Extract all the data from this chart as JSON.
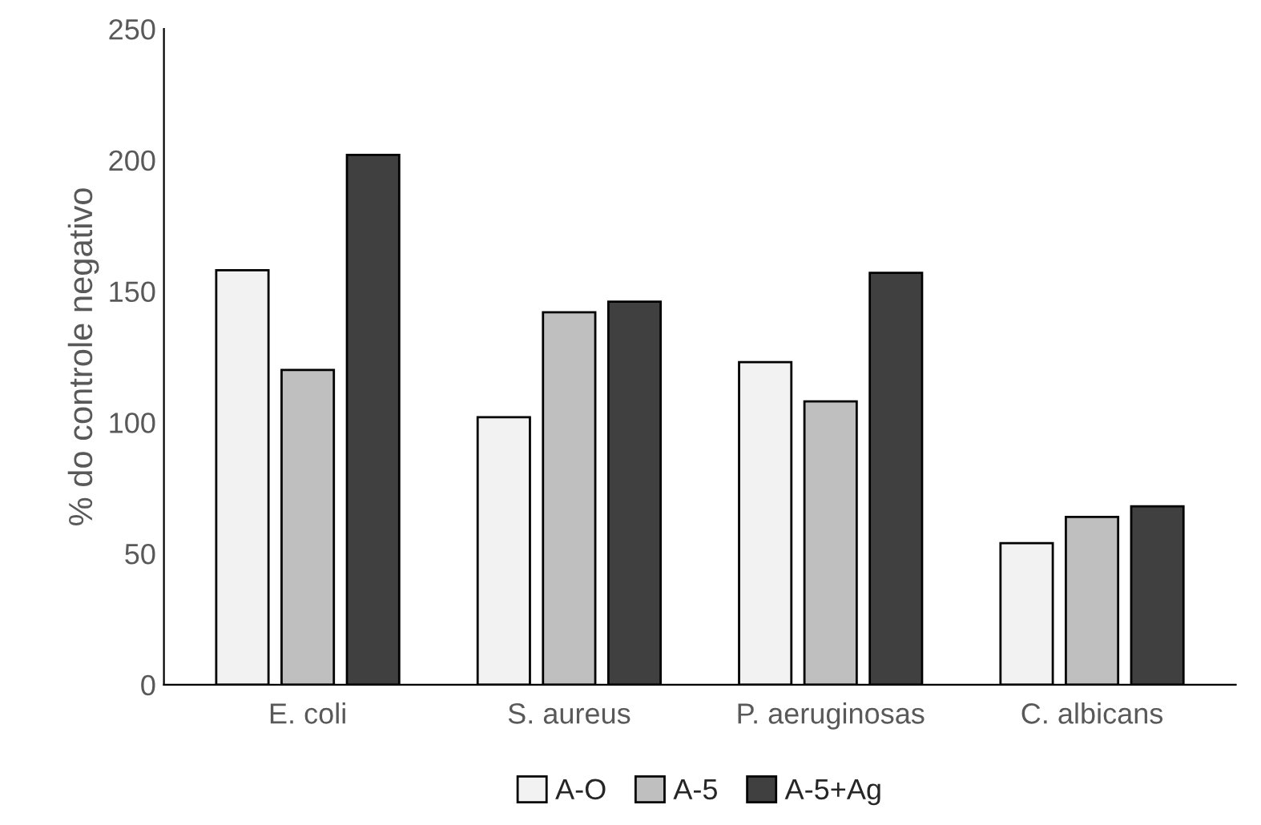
{
  "chart_data": {
    "type": "bar",
    "ylabel": "% do controle negativo",
    "categories": [
      "E. coli",
      "S. aureus",
      "P. aeruginosas",
      "C. albicans"
    ],
    "series": [
      {
        "name": "A-O",
        "color": "#f2f2f2",
        "values": [
          158,
          102,
          123,
          54
        ]
      },
      {
        "name": "A-5",
        "color": "#bfbfbf",
        "values": [
          120,
          142,
          108,
          64
        ]
      },
      {
        "name": "A-5+Ag",
        "color": "#404040",
        "values": [
          202,
          146,
          157,
          68
        ]
      }
    ],
    "ylim": [
      0,
      250
    ],
    "yticks": [
      0,
      50,
      100,
      150,
      200,
      250
    ],
    "grid": false,
    "legend": "bottom"
  }
}
